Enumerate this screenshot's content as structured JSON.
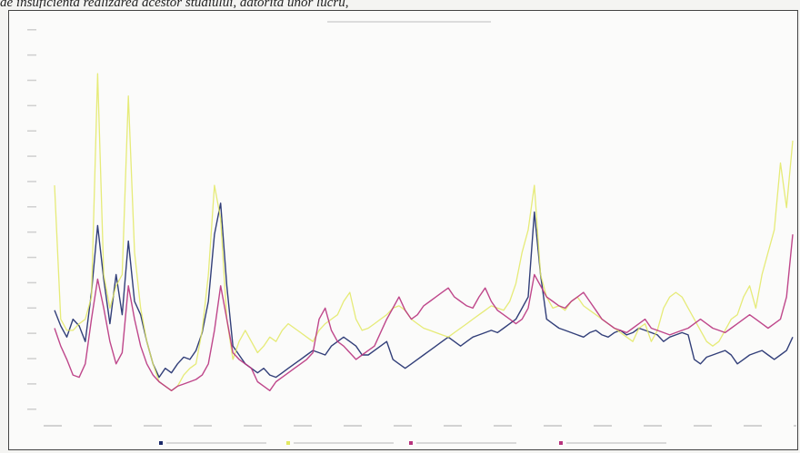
{
  "caption": "de insuficienta realizarea acestor studiului, datorita unor lucru,",
  "chart_data": {
    "type": "line",
    "title": "",
    "xlabel": "",
    "ylabel": "",
    "ylim": [
      0,
      170
    ],
    "grid": false,
    "legend": "bottom",
    "x": [
      0,
      1,
      2,
      3,
      4,
      5,
      6,
      7,
      8,
      9,
      10,
      11,
      12,
      13,
      14,
      15,
      16,
      17,
      18,
      19,
      20,
      21,
      22,
      23,
      24,
      25,
      26,
      27,
      28,
      29,
      30,
      31,
      32,
      33,
      34,
      35,
      36,
      37,
      38,
      39,
      40,
      41,
      42,
      43,
      44,
      45,
      46,
      47,
      48,
      49,
      50,
      51,
      52,
      53,
      54,
      55,
      56,
      57,
      58,
      59,
      60,
      61,
      62,
      63,
      64,
      65,
      66,
      67,
      68,
      69,
      70,
      71,
      72,
      73,
      74,
      75,
      76,
      77,
      78,
      79,
      80,
      81,
      82,
      83,
      84,
      85,
      86,
      87,
      88,
      89,
      90,
      91,
      92,
      93,
      94,
      95,
      96,
      97,
      98,
      99,
      100,
      101,
      102,
      103,
      104,
      105,
      106,
      107,
      108,
      109,
      110,
      111,
      112,
      113,
      114,
      115,
      116,
      117,
      118,
      119,
      120
    ],
    "series": [
      {
        "color": "#1c2a6a",
        "values": [
          44,
          37,
          32,
          40,
          37,
          30,
          52,
          82,
          58,
          38,
          60,
          42,
          75,
          48,
          42,
          30,
          20,
          14,
          18,
          16,
          20,
          23,
          22,
          26,
          34,
          48,
          78,
          92,
          55,
          28,
          24,
          20,
          18,
          16,
          18,
          15,
          14,
          16,
          18,
          20,
          22,
          24,
          26,
          25,
          24,
          28,
          30,
          32,
          30,
          28,
          24,
          24,
          26,
          28,
          30,
          22,
          20,
          18,
          20,
          22,
          24,
          26,
          28,
          30,
          32,
          30,
          28,
          30,
          32,
          33,
          34,
          35,
          34,
          36,
          38,
          40,
          45,
          50,
          88,
          60,
          40,
          38,
          36,
          35,
          34,
          33,
          32,
          34,
          35,
          33,
          32,
          34,
          35,
          33,
          34,
          36,
          35,
          34,
          33,
          30,
          32,
          33,
          34,
          33,
          22,
          20,
          23,
          24,
          25,
          26,
          24,
          20,
          22,
          24,
          25,
          26,
          24,
          22,
          24,
          26,
          32
        ]
      },
      {
        "color": "#e2e860",
        "values": [
          100,
          40,
          35,
          35,
          38,
          40,
          50,
          150,
          60,
          45,
          55,
          60,
          140,
          70,
          45,
          30,
          20,
          12,
          10,
          8,
          10,
          15,
          18,
          20,
          35,
          60,
          100,
          85,
          40,
          22,
          30,
          35,
          30,
          25,
          28,
          32,
          30,
          35,
          38,
          36,
          34,
          32,
          30,
          35,
          38,
          40,
          42,
          48,
          52,
          40,
          35,
          36,
          38,
          40,
          42,
          45,
          46,
          44,
          40,
          38,
          36,
          35,
          34,
          33,
          32,
          34,
          36,
          38,
          40,
          42,
          44,
          46,
          45,
          44,
          48,
          56,
          70,
          80,
          100,
          60,
          50,
          45,
          46,
          44,
          48,
          50,
          46,
          44,
          42,
          40,
          38,
          36,
          34,
          32,
          30,
          36,
          38,
          30,
          35,
          45,
          50,
          52,
          50,
          45,
          40,
          35,
          30,
          28,
          30,
          35,
          40,
          42,
          50,
          55,
          45,
          60,
          70,
          80,
          110,
          90,
          120
        ]
      },
      {
        "color": "#b8337e",
        "values": [
          36,
          28,
          22,
          15,
          14,
          20,
          40,
          58,
          45,
          30,
          20,
          25,
          55,
          40,
          28,
          20,
          15,
          12,
          10,
          8,
          10,
          11,
          12,
          13,
          15,
          20,
          35,
          55,
          40,
          25,
          22,
          20,
          18,
          12,
          10,
          8,
          12,
          14,
          16,
          18,
          20,
          22,
          25,
          40,
          45,
          35,
          30,
          28,
          25,
          22,
          24,
          26,
          28,
          34,
          40,
          45,
          50,
          44,
          40,
          42,
          46,
          48,
          50,
          52,
          54,
          50,
          48,
          46,
          45,
          50,
          54,
          48,
          44,
          42,
          40,
          38,
          40,
          45,
          60,
          55,
          50,
          48,
          46,
          45,
          48,
          50,
          52,
          48,
          44,
          40,
          38,
          36,
          35,
          34,
          36,
          38,
          40,
          36,
          35,
          34,
          33,
          34,
          35,
          36,
          38,
          40,
          38,
          36,
          35,
          34,
          36,
          38,
          40,
          42,
          40,
          38,
          36,
          38,
          40,
          50,
          78
        ]
      }
    ]
  }
}
